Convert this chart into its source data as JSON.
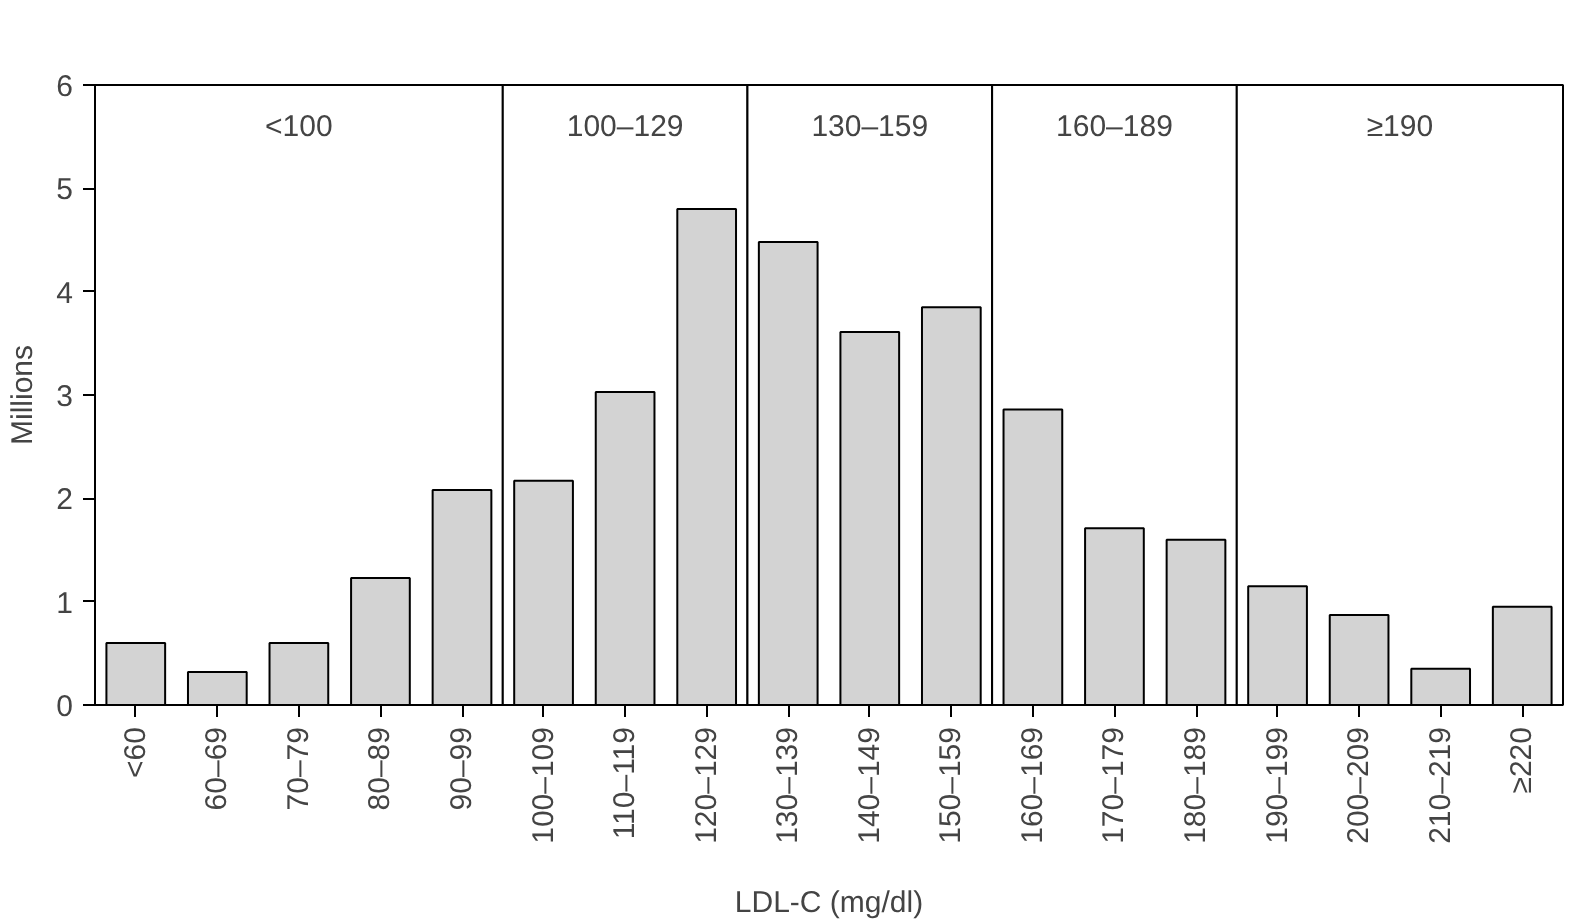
{
  "chart_data": {
    "type": "bar",
    "xlabel": "LDL-C (mg/dl)",
    "ylabel": "Millions",
    "categories": [
      "<60",
      "60–69",
      "70–79",
      "80–89",
      "90–99",
      "100–109",
      "110–119",
      "120–129",
      "130–139",
      "140–149",
      "150–159",
      "160–169",
      "170–179",
      "180–189",
      "190–199",
      "200–209",
      "210–219",
      "≥220"
    ],
    "values": [
      0.6,
      0.32,
      0.6,
      1.23,
      2.08,
      2.17,
      3.03,
      4.8,
      4.48,
      3.61,
      3.85,
      2.86,
      1.71,
      1.6,
      1.15,
      0.87,
      0.35,
      0.95
    ],
    "color": "#d3d3d3",
    "ylim": [
      0,
      6
    ],
    "yticks": [
      0,
      1,
      2,
      3,
      4,
      5,
      6
    ],
    "bands": [
      {
        "axis": "x",
        "from": "<60",
        "to": "90–99",
        "label": "<100",
        "color": "#ffffff"
      },
      {
        "axis": "x",
        "from": "100–109",
        "to": "120–129",
        "label": "100–129",
        "color": "#ffffff"
      },
      {
        "axis": "x",
        "from": "130–139",
        "to": "150–159",
        "label": "130–159",
        "color": "#ffffff"
      },
      {
        "axis": "x",
        "from": "160–169",
        "to": "180–189",
        "label": "160–189",
        "color": "#ffffff"
      },
      {
        "axis": "x",
        "from": "190–199",
        "to": "≥220",
        "label": "≥190",
        "color": "#ffffff"
      }
    ]
  }
}
